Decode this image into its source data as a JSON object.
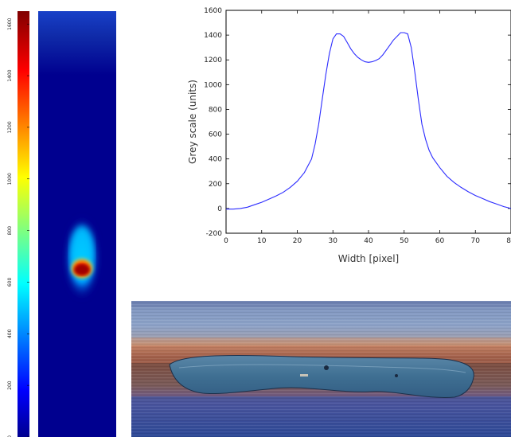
{
  "colorbar": {
    "tick_labels": [
      "0",
      "200",
      "400",
      "600",
      "800",
      "1000",
      "1200",
      "1400",
      "1600"
    ],
    "range": [
      0,
      1650
    ],
    "colormap": "jet"
  },
  "heatmap": {
    "background_color": "#00008f",
    "hot_spot_color": "#a80000"
  },
  "chart_data": {
    "type": "line",
    "title": "",
    "xlabel": "Width [pixel]",
    "ylabel": "Grey scale (units)",
    "xlim": [
      0,
      80
    ],
    "ylim": [
      -200,
      1600
    ],
    "xticks": [
      "0",
      "10",
      "20",
      "30",
      "40",
      "50",
      "60",
      "70",
      "80"
    ],
    "yticks": [
      "-200",
      "0",
      "200",
      "400",
      "600",
      "800",
      "1000",
      "1200",
      "1400",
      "1600"
    ],
    "grid": false,
    "line_color": "#2b2bff",
    "series": [
      {
        "x": [
          0,
          2,
          4,
          6,
          8,
          10,
          12,
          14,
          16,
          18,
          20,
          22,
          24,
          25,
          26,
          27,
          28,
          29,
          30,
          31,
          32,
          33,
          34,
          35,
          36,
          37,
          38,
          39,
          40,
          41,
          42,
          43,
          44,
          45,
          46,
          47,
          48,
          49,
          50,
          51,
          52,
          53,
          54,
          55,
          56,
          57,
          58,
          60,
          62,
          64,
          66,
          68,
          70,
          72,
          74,
          76,
          78,
          80
        ],
        "y": [
          -5,
          -5,
          0,
          10,
          30,
          50,
          75,
          100,
          130,
          170,
          220,
          290,
          400,
          520,
          680,
          880,
          1080,
          1250,
          1370,
          1410,
          1410,
          1390,
          1340,
          1290,
          1250,
          1220,
          1200,
          1185,
          1180,
          1185,
          1195,
          1210,
          1240,
          1280,
          1320,
          1360,
          1390,
          1420,
          1420,
          1410,
          1300,
          1100,
          880,
          680,
          560,
          470,
          410,
          330,
          260,
          210,
          170,
          135,
          105,
          80,
          55,
          35,
          15,
          0
        ]
      }
    ]
  },
  "micrograph": {
    "description_free": true
  }
}
